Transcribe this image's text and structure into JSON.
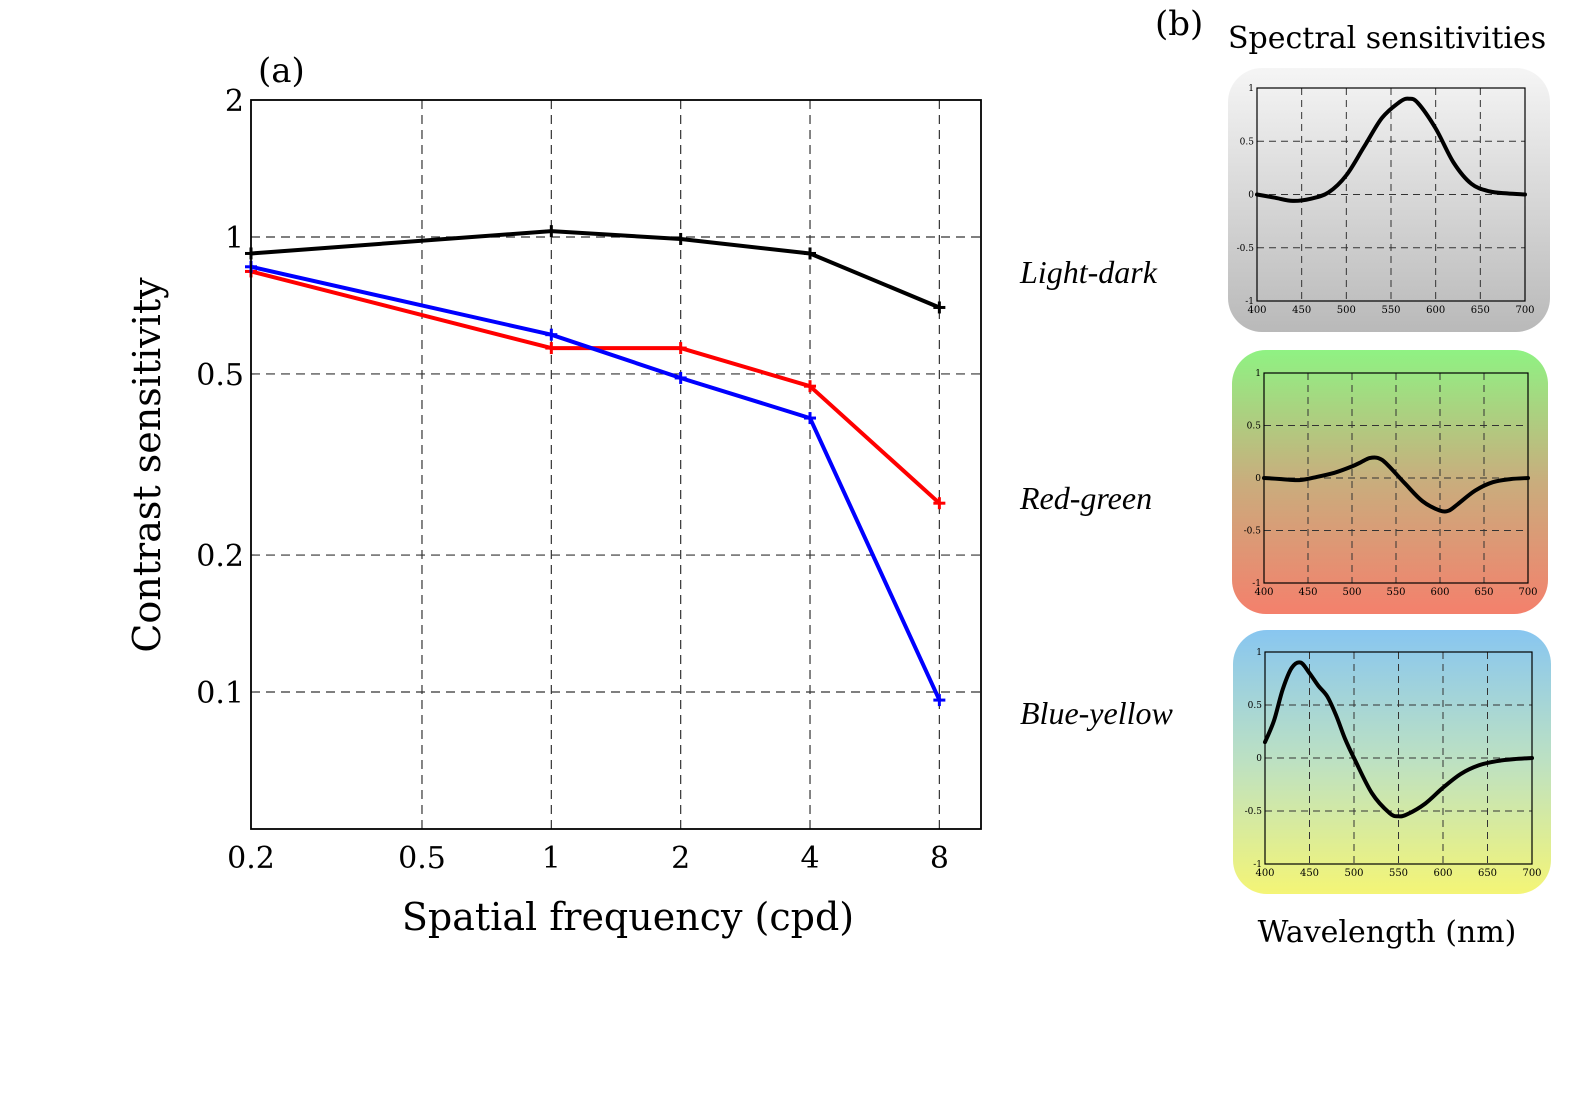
{
  "panel_a_label": "(a)",
  "panel_b_label": "(b)",
  "colors": {
    "light_dark": "#000000",
    "red_green": "#ff0000",
    "blue_yellow": "#0000ff"
  },
  "chart_data": [
    {
      "type": "line",
      "xlabel": "Spatial frequency (cpd)",
      "ylabel": "Contrast sensitivity",
      "xscale": "log",
      "yscale": "log",
      "xlim": [
        0.2,
        10
      ],
      "ylim": [
        0.05,
        2
      ],
      "xticks": [
        0.2,
        0.5,
        1,
        2,
        4,
        8
      ],
      "xtick_labels": [
        "0.2",
        "0.5",
        "1",
        "2",
        "4",
        "8"
      ],
      "yticks": [
        0.1,
        0.2,
        0.5,
        1,
        2
      ],
      "ytick_labels": [
        "0.1",
        "0.2",
        "0.5",
        "1",
        "2"
      ],
      "grid": true,
      "x": [
        0.2,
        1,
        2,
        4,
        8
      ],
      "series": [
        {
          "key": "light_dark",
          "values": [
            0.92,
            1.03,
            0.99,
            0.92,
            0.7
          ]
        },
        {
          "key": "red_green",
          "values": [
            0.84,
            0.57,
            0.57,
            0.47,
            0.26
          ]
        },
        {
          "key": "blue_yellow",
          "values": [
            0.86,
            0.61,
            0.49,
            0.4,
            0.096
          ]
        }
      ]
    },
    {
      "type": "line",
      "title": "Spectral sensitivities",
      "xlabel": "Wavelength (nm)",
      "xlim": [
        400,
        700
      ],
      "ylim": [
        -1,
        1
      ],
      "xticks": [
        400,
        450,
        500,
        550,
        600,
        650,
        700
      ],
      "yticks": [
        -1,
        -0.5,
        0,
        0.5,
        1
      ],
      "ytick_labels": [
        "-1",
        "-0.5",
        "0",
        "0.5",
        "1"
      ],
      "grid": true,
      "panels": [
        {
          "name": "Light-dark",
          "x": [
            400,
            420,
            440,
            460,
            480,
            500,
            520,
            540,
            560,
            570,
            580,
            600,
            620,
            640,
            660,
            680,
            700
          ],
          "y": [
            0,
            -0.03,
            -0.06,
            -0.04,
            0.02,
            0.18,
            0.45,
            0.72,
            0.87,
            0.9,
            0.86,
            0.62,
            0.3,
            0.1,
            0.03,
            0.01,
            0.0
          ]
        },
        {
          "name": "Red-green",
          "x": [
            400,
            420,
            440,
            460,
            480,
            500,
            510,
            520,
            530,
            540,
            560,
            580,
            600,
            610,
            620,
            640,
            660,
            680,
            700
          ],
          "y": [
            0,
            -0.01,
            -0.02,
            0.01,
            0.05,
            0.11,
            0.15,
            0.19,
            0.19,
            0.13,
            -0.05,
            -0.22,
            -0.31,
            -0.31,
            -0.25,
            -0.12,
            -0.04,
            -0.01,
            0.0
          ]
        },
        {
          "name": "Blue-yellow",
          "x": [
            400,
            410,
            420,
            430,
            440,
            450,
            460,
            470,
            480,
            490,
            500,
            520,
            540,
            550,
            560,
            580,
            600,
            620,
            640,
            660,
            680,
            700
          ],
          "y": [
            0.15,
            0.35,
            0.65,
            0.85,
            0.9,
            0.8,
            0.68,
            0.58,
            0.4,
            0.18,
            0.0,
            -0.33,
            -0.52,
            -0.55,
            -0.53,
            -0.43,
            -0.28,
            -0.15,
            -0.07,
            -0.03,
            -0.01,
            0.0
          ]
        }
      ]
    }
  ]
}
